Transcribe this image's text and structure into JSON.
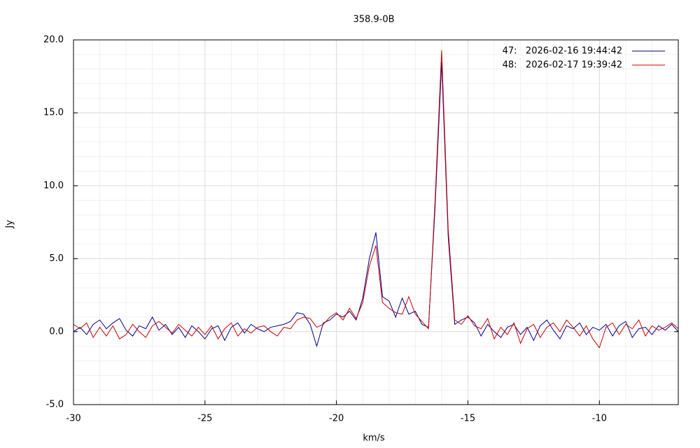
{
  "chart_data": {
    "type": "line",
    "title": "358.9-0B",
    "x_label": "km/s",
    "y_label": "Jy",
    "grid": true,
    "minor_grid": true,
    "legend": "top-right",
    "xlim": [
      -30,
      -7.0
    ],
    "ylim": [
      -5,
      20
    ],
    "xticks": [
      -30,
      -25,
      -20,
      -15,
      -10
    ],
    "yticks": [
      {
        "value": -5,
        "label": "-5.0"
      },
      {
        "value": 0,
        "label": "0.0"
      },
      {
        "value": 5,
        "label": "5.0"
      },
      {
        "value": 10,
        "label": "10.0"
      },
      {
        "value": 15,
        "label": "15.0"
      },
      {
        "value": 20,
        "label": "20.0"
      }
    ],
    "x": [
      -30,
      -29.75,
      -29.5,
      -29.25,
      -29,
      -28.75,
      -28.5,
      -28.25,
      -28,
      -27.75,
      -27.5,
      -27.25,
      -27,
      -26.75,
      -26.5,
      -26.25,
      -26,
      -25.75,
      -25.5,
      -25.25,
      -25,
      -24.75,
      -24.5,
      -24.25,
      -24,
      -23.75,
      -23.5,
      -23.25,
      -23,
      -22.75,
      -22.5,
      -22.25,
      -22,
      -21.75,
      -21.5,
      -21.25,
      -21,
      -20.75,
      -20.5,
      -20.25,
      -20,
      -19.75,
      -19.5,
      -19.25,
      -19,
      -18.75,
      -18.5,
      -18.25,
      -18,
      -17.75,
      -17.5,
      -17.25,
      -17,
      -16.75,
      -16.5,
      -16.25,
      -16,
      -15.75,
      -15.5,
      -15.25,
      -15,
      -14.75,
      -14.5,
      -14.25,
      -14,
      -13.75,
      -13.5,
      -13.25,
      -13,
      -12.75,
      -12.5,
      -12.25,
      -12,
      -11.75,
      -11.5,
      -11.25,
      -11,
      -10.75,
      -10.5,
      -10.25,
      -10,
      -9.75,
      -9.5,
      -9.25,
      -9,
      -8.75,
      -8.5,
      -8.25,
      -8,
      -7.75,
      -7.5,
      -7.25,
      -7
    ],
    "series": [
      {
        "name": "47:   2026-02-16 19:44:42",
        "color": "#00008b",
        "values": [
          0.0,
          0.3,
          -0.2,
          0.5,
          0.8,
          0.2,
          0.6,
          0.9,
          0.1,
          -0.3,
          0.4,
          0.2,
          1.0,
          0.1,
          0.5,
          -0.2,
          0.3,
          -0.4,
          0.4,
          0.0,
          -0.5,
          0.2,
          0.4,
          -0.6,
          0.3,
          0.6,
          -0.1,
          0.5,
          0.2,
          0.0,
          0.3,
          0.4,
          0.5,
          0.7,
          1.3,
          1.2,
          0.5,
          -1.0,
          0.6,
          0.8,
          1.2,
          1.0,
          1.4,
          0.8,
          2.3,
          5.0,
          6.8,
          2.4,
          2.1,
          1.0,
          2.3,
          1.2,
          1.4,
          0.5,
          0.3,
          8.5,
          18.5,
          6.5,
          0.5,
          0.8,
          1.0,
          0.6,
          -0.3,
          0.5,
          0.0,
          -0.4,
          0.3,
          0.5,
          -0.2,
          0.3,
          -0.6,
          0.4,
          0.8,
          0.1,
          -0.5,
          0.4,
          0.2,
          0.6,
          -0.2,
          0.3,
          0.1,
          0.5,
          -0.3,
          0.4,
          0.7,
          -0.4,
          0.2,
          0.3,
          -0.2,
          0.4,
          0.1,
          0.5,
          0.0
        ]
      },
      {
        "name": "48:   2026-02-17 19:39:42",
        "color": "#cc0000",
        "values": [
          0.5,
          0.2,
          0.6,
          -0.4,
          0.3,
          -0.3,
          0.4,
          -0.5,
          -0.2,
          0.5,
          0.0,
          -0.4,
          0.4,
          0.7,
          0.3,
          -0.1,
          0.5,
          0.1,
          -0.3,
          0.3,
          -0.2,
          0.4,
          -0.5,
          0.2,
          0.6,
          -0.3,
          0.2,
          -0.1,
          0.3,
          0.4,
          0.0,
          -0.3,
          0.3,
          0.2,
          0.8,
          1.0,
          0.9,
          0.3,
          0.5,
          1.0,
          1.3,
          0.8,
          1.6,
          0.9,
          2.0,
          4.5,
          5.9,
          2.0,
          1.6,
          1.3,
          1.2,
          2.4,
          1.2,
          0.7,
          0.2,
          9.0,
          19.3,
          7.0,
          0.8,
          0.5,
          1.1,
          0.4,
          0.2,
          0.9,
          -0.5,
          0.3,
          -0.2,
          0.6,
          -0.8,
          0.2,
          0.5,
          -0.4,
          0.3,
          0.6,
          0.0,
          0.8,
          0.3,
          -0.3,
          0.4,
          -0.5,
          -1.1,
          0.3,
          0.6,
          -0.2,
          0.5,
          0.2,
          0.8,
          -0.3,
          0.4,
          0.1,
          0.3,
          0.6,
          0.2
        ]
      }
    ]
  }
}
